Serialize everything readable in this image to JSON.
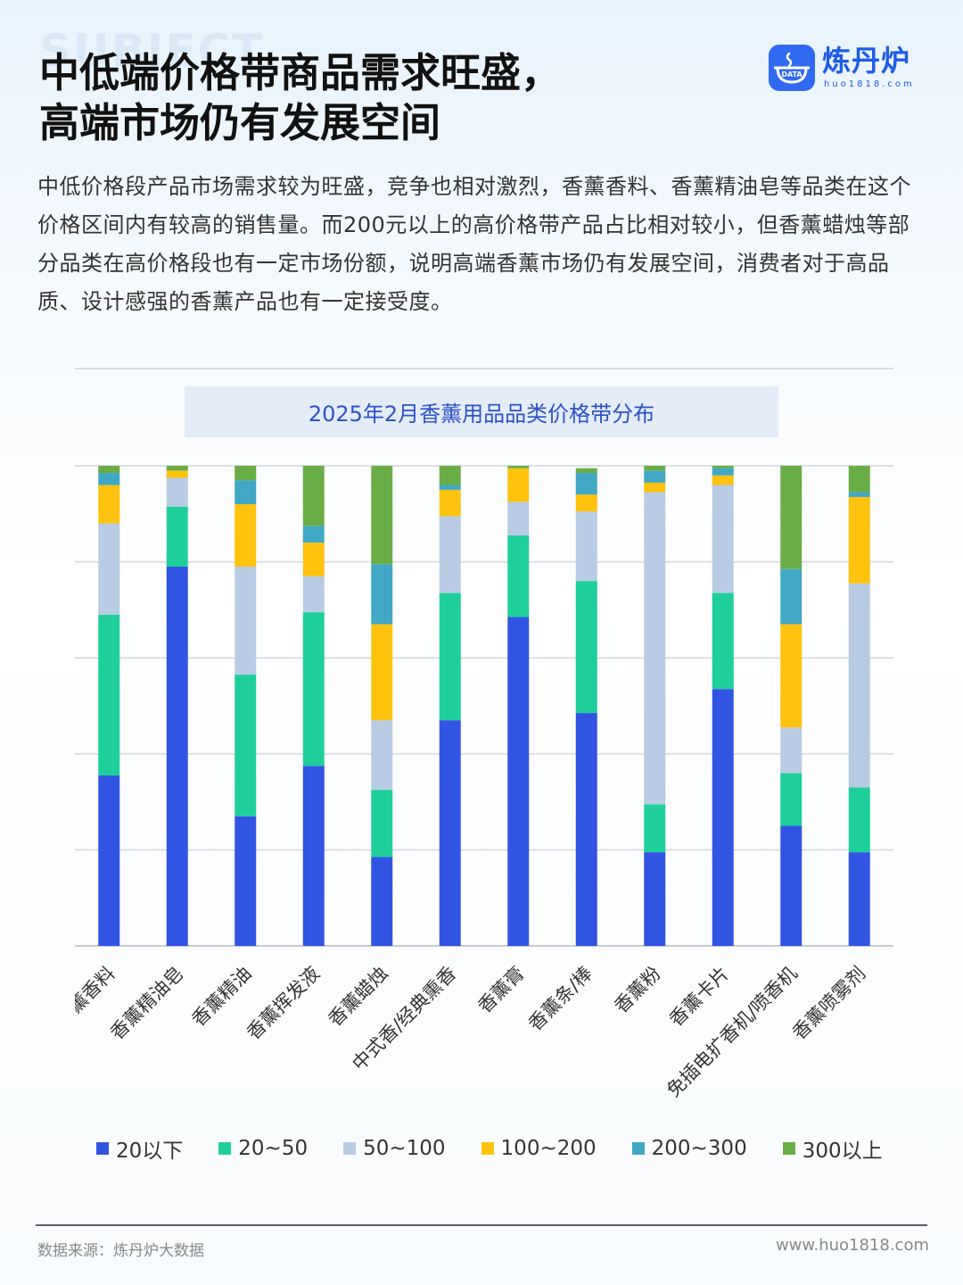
{
  "background_word": "SUBJECT",
  "title_lines": [
    "中低端价格带商品需求旺盛，",
    "高端市场仍有发展空间"
  ],
  "logo": {
    "name": "炼丹炉",
    "badge": "DATA",
    "url": "huo1818.com",
    "color": "#2f6af0"
  },
  "intro": "中低价格段产品市场需求较为旺盛，竞争也相对激烈，香薰香料、香薰精油皂等品类在这个价格区间内有较高的销售量。而200元以上的高价格带产品占比相对较小，但香薰蜡烛等部分品类在高价格段也有一定市场份额，说明高端香薰市场仍有发展空间，消费者对于高品质、设计感强的香薰产品也有一定接受度。",
  "chart_data": {
    "type": "bar",
    "stacked": true,
    "percent": true,
    "title": "2025年2月香薰用品品类价格带分布",
    "categories": [
      "香薰香料",
      "香薰精油皂",
      "香薰精油",
      "香薰挥发液",
      "香薰蜡烛",
      "中式香/经典熏香",
      "香薰膏",
      "香薰条/棒",
      "香薰粉",
      "香薰卡片",
      "免插电扩香机/喷香机",
      "香薰喷雾剂"
    ],
    "series": [
      {
        "name": "20以下",
        "color": "#3254e3",
        "values": [
          35.5,
          79.0,
          27.0,
          37.5,
          18.5,
          47.0,
          68.5,
          48.5,
          19.5,
          53.5,
          25.0,
          19.5
        ]
      },
      {
        "name": "20~50",
        "color": "#1ecf9c",
        "values": [
          33.5,
          12.5,
          29.5,
          32.0,
          14.0,
          26.5,
          17.0,
          27.5,
          10.0,
          20.0,
          11.0,
          13.5
        ]
      },
      {
        "name": "50~100",
        "color": "#b8cce4",
        "values": [
          19.0,
          6.0,
          22.5,
          7.5,
          14.5,
          16.0,
          7.0,
          14.5,
          65.0,
          22.5,
          9.5,
          42.5
        ]
      },
      {
        "name": "100~200",
        "color": "#ffc20e",
        "values": [
          8.0,
          1.5,
          13.0,
          7.0,
          20.0,
          5.5,
          7.0,
          3.5,
          2.0,
          2.0,
          21.5,
          18.0
        ]
      },
      {
        "name": "200~300",
        "color": "#40a8c4",
        "values": [
          2.5,
          0,
          5.0,
          3.5,
          12.5,
          1.0,
          0,
          4.5,
          2.5,
          1.5,
          11.5,
          1.0
        ]
      },
      {
        "name": "300以上",
        "color": "#6aad47",
        "values": [
          1.5,
          1.0,
          3.0,
          12.5,
          20.5,
          4.0,
          0.5,
          1.0,
          1.0,
          0.5,
          21.5,
          5.5
        ]
      }
    ],
    "ylim": [
      0,
      100
    ],
    "gridlines": 5,
    "y_tick_labels_shown": false,
    "legend_position": "bottom"
  },
  "footer": {
    "source": "数据来源：炼丹炉大数据",
    "url": "www.huo1818.com"
  }
}
